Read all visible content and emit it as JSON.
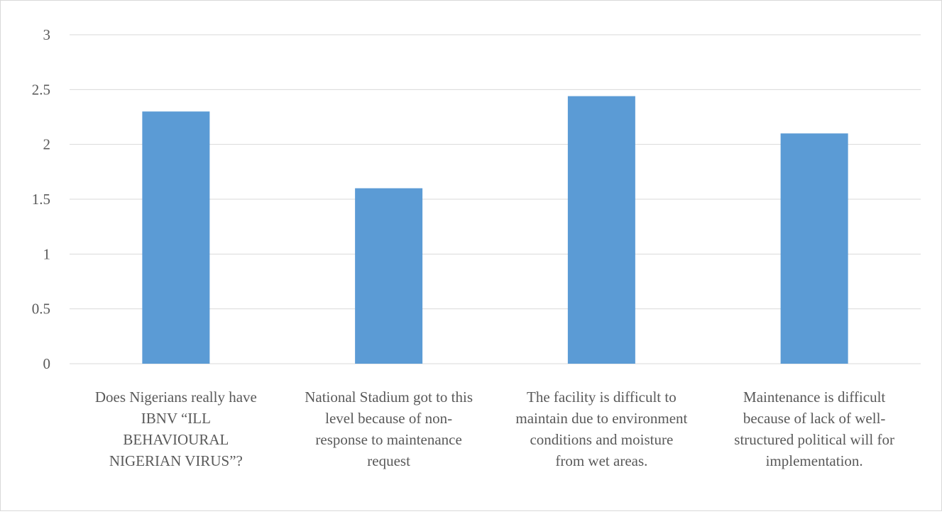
{
  "chart_data": {
    "type": "bar",
    "title": "",
    "xlabel": "",
    "ylabel": "",
    "ylim": [
      0,
      3
    ],
    "yticks": [
      "0",
      "0.5",
      "1",
      "1.5",
      "2",
      "2.5",
      "3"
    ],
    "grid": true,
    "legend": "none",
    "bar_color": "#5b9bd5",
    "grid_color": "#d9d9d9",
    "categories": [
      [
        "Does Nigerians really have",
        "IBNV “ILL",
        "BEHAVIOURAL",
        "NIGERIAN VIRUS”?"
      ],
      [
        "National Stadium got to this",
        "level because of non-",
        "response to maintenance",
        "request"
      ],
      [
        "The facility is difficult to",
        "maintain due to environment",
        "conditions and moisture",
        "from wet areas."
      ],
      [
        "Maintenance is difficult",
        "because of lack of well-",
        "structured political will for",
        "implementation."
      ]
    ],
    "values": [
      2.3,
      1.6,
      2.44,
      2.1
    ]
  }
}
